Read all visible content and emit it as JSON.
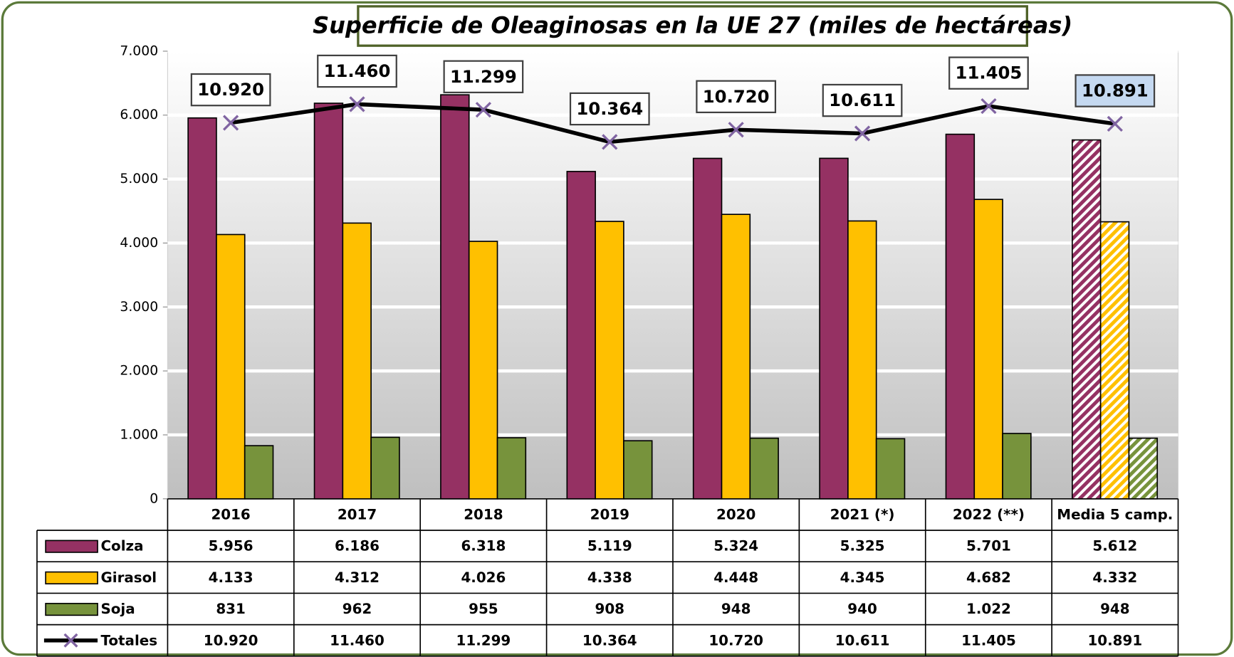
{
  "chart_data": {
    "type": "bar",
    "title": "Superficie de Oleaginosas en la UE 27 (miles de hectáreas)",
    "categories": [
      "2016",
      "2017",
      "2018",
      "2019",
      "2020",
      "2021 (*)",
      "2022 (**)",
      "Media 5 camp."
    ],
    "hatched": [
      false,
      false,
      false,
      false,
      false,
      false,
      false,
      true
    ],
    "series": [
      {
        "name": "Colza",
        "color": "#953163",
        "values": [
          5956,
          6186,
          6318,
          5119,
          5324,
          5325,
          5701,
          5612
        ],
        "value_labels": [
          "5.956",
          "6.186",
          "6.318",
          "5.119",
          "5.324",
          "5.325",
          "5.701",
          "5.612"
        ]
      },
      {
        "name": "Girasol",
        "color": "#ffc000",
        "values": [
          4133,
          4312,
          4026,
          4338,
          4448,
          4345,
          4682,
          4332
        ],
        "value_labels": [
          "4.133",
          "4.312",
          "4.026",
          "4.338",
          "4.448",
          "4.345",
          "4.682",
          "4.332"
        ]
      },
      {
        "name": "Soja",
        "color": "#77933c",
        "values": [
          831,
          962,
          955,
          908,
          948,
          940,
          1022,
          948
        ],
        "value_labels": [
          "831",
          "962",
          "955",
          "908",
          "948",
          "940",
          "1.022",
          "948"
        ]
      },
      {
        "name": "Totales",
        "type": "line",
        "axis": "y2",
        "color": "#000000",
        "marker_color": "#8064a2",
        "values": [
          10920,
          11460,
          11299,
          10364,
          10720,
          10611,
          11405,
          10891
        ],
        "value_labels": [
          "10.920",
          "11.460",
          "11.299",
          "10.364",
          "10.720",
          "10.611",
          "11.405",
          "10.891"
        ]
      }
    ],
    "ylim": [
      0,
      7000
    ],
    "yticks": [
      0,
      {
        "value": 1000,
        "label": "1.000"
      },
      {
        "value": 2000,
        "label": "2.000"
      },
      {
        "value": 3000,
        "label": "3.000"
      },
      {
        "value": 4000,
        "label": "4.000"
      },
      {
        "value": 5000,
        "label": "5.000"
      },
      {
        "value": 6000,
        "label": "6.000"
      },
      {
        "value": 7000,
        "label": "7.000"
      }
    ],
    "y2lim": [
      0,
      13000
    ],
    "grid": true
  }
}
